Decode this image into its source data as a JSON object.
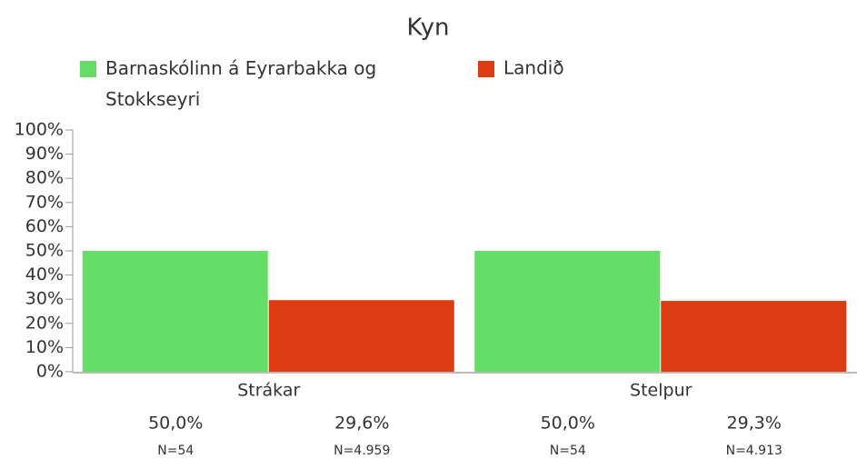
{
  "chart_data": {
    "type": "bar",
    "title": "Kyn",
    "categories": [
      "Strákar",
      "Stelpur"
    ],
    "series": [
      {
        "name": "Barnaskólinn á Eyrarbakka og Stokkseyri",
        "color": "#66dd66",
        "values": [
          50.0,
          50.0
        ],
        "value_labels": [
          "50,0%",
          "50,0%"
        ],
        "n_values": [
          54,
          54
        ],
        "n_labels": [
          "N=54",
          "N=54"
        ]
      },
      {
        "name": "Landið",
        "color": "#dd3b12",
        "values": [
          29.6,
          29.3
        ],
        "value_labels": [
          "29,6%",
          "29,3%"
        ],
        "n_values": [
          4959,
          4913
        ],
        "n_labels": [
          "N=4.959",
          "N=4.913"
        ]
      }
    ],
    "ylim": [
      0,
      100
    ],
    "yticks": [
      {
        "value": 0,
        "label": "0%"
      },
      {
        "value": 10,
        "label": "10%"
      },
      {
        "value": 20,
        "label": "20%"
      },
      {
        "value": 30,
        "label": "30%"
      },
      {
        "value": 40,
        "label": "40%"
      },
      {
        "value": 50,
        "label": "50%"
      },
      {
        "value": 60,
        "label": "60%"
      },
      {
        "value": 70,
        "label": "70%"
      },
      {
        "value": 80,
        "label": "80%"
      },
      {
        "value": 90,
        "label": "90%"
      },
      {
        "value": 100,
        "label": "100%"
      }
    ]
  }
}
